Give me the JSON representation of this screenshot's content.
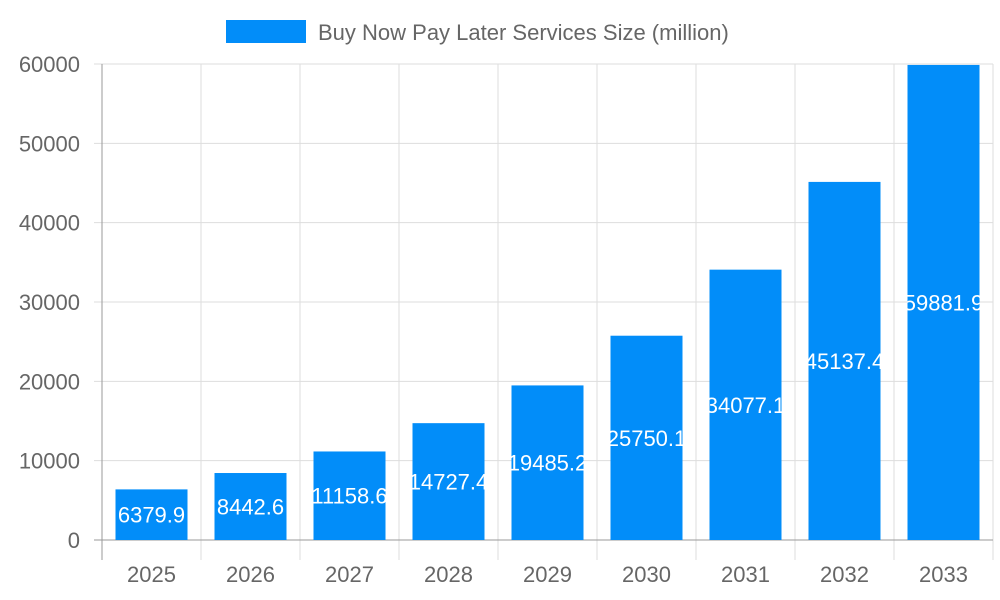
{
  "chart_data": {
    "type": "bar",
    "title": "",
    "xlabel": "",
    "ylabel": "",
    "categories": [
      "2025",
      "2026",
      "2027",
      "2028",
      "2029",
      "2030",
      "2031",
      "2032",
      "2033"
    ],
    "series": [
      {
        "name": "Buy Now Pay Later Services Size (million)",
        "values": [
          6379.9,
          8442.6,
          11158.6,
          14727.4,
          19485.2,
          25750.1,
          34077.1,
          45137.4,
          59881.9
        ],
        "color": "#028df9"
      }
    ],
    "ylim": [
      0,
      60000
    ],
    "yticks": [
      0,
      10000,
      20000,
      30000,
      40000,
      50000,
      60000
    ],
    "grid": true,
    "legend": "top-center",
    "data_labels": true
  }
}
